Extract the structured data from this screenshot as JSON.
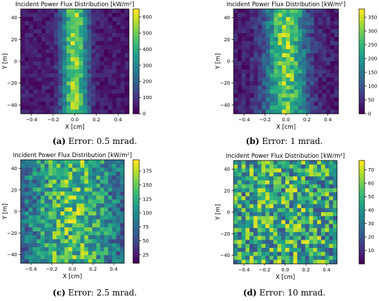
{
  "chart_data": [
    {
      "type": "heatmap",
      "title": "Incident Power Flux Distribution [kW/m²]",
      "xlabel": "X [cm]",
      "ylabel": "Y [m]",
      "x_ticks": [
        "−0.4",
        "−0.2",
        "0.0",
        "0.2",
        "0.4"
      ],
      "y_ticks": [
        "−40",
        "−20",
        "0",
        "20",
        "40"
      ],
      "xlim": [
        -0.5,
        0.5
      ],
      "ylim": [
        -48,
        48
      ],
      "colorbar": {
        "min": 0,
        "max": 650,
        "ticks": [
          "0",
          "100",
          "200",
          "300",
          "400",
          "500",
          "600"
        ]
      },
      "beam_width_cm": 0.08,
      "noise": 0.35,
      "caption_label": "(a)",
      "caption_text": "Error: 0.5 mrad."
    },
    {
      "type": "heatmap",
      "title": "Incident Power Flux Distribution [kW/m²]",
      "xlabel": "X [cm]",
      "ylabel": "Y [m]",
      "x_ticks": [
        "−0.4",
        "−0.2",
        "0.0",
        "0.2",
        "0.4"
      ],
      "y_ticks": [
        "−40",
        "−20",
        "0",
        "20",
        "40"
      ],
      "xlim": [
        -0.5,
        0.5
      ],
      "ylim": [
        -48,
        48
      ],
      "colorbar": {
        "min": 0,
        "max": 380,
        "ticks": [
          "0",
          "50",
          "100",
          "150",
          "200",
          "250",
          "300",
          "350"
        ]
      },
      "beam_width_cm": 0.13,
      "noise": 0.45,
      "caption_label": "(b)",
      "caption_text": "Error: 1 mrad."
    },
    {
      "type": "heatmap",
      "title": "Incident Power Flux Distribution [kW/m²]",
      "xlabel": "X [cm]",
      "ylabel": "Y [m]",
      "x_ticks": [
        "−0.4",
        "−0.2",
        "0.0",
        "0.2",
        "0.4"
      ],
      "y_ticks": [
        "−40",
        "−20",
        "0",
        "20",
        "40"
      ],
      "xlim": [
        -0.5,
        0.5
      ],
      "ylim": [
        -48,
        48
      ],
      "colorbar": {
        "min": 10,
        "max": 195,
        "ticks": [
          "25",
          "50",
          "75",
          "100",
          "125",
          "150",
          "175"
        ]
      },
      "beam_width_cm": 0.35,
      "noise": 0.6,
      "caption_label": "(c)",
      "caption_text": "Error: 2.5 mrad."
    },
    {
      "type": "heatmap",
      "title": "Incident Power Flux Distribution [kW/m²]",
      "xlabel": "X [cm]",
      "ylabel": "Y [m]",
      "x_ticks": [
        "−0.4",
        "−0.2",
        "0.0",
        "0.2",
        "0.4"
      ],
      "y_ticks": [
        "−40",
        "−20",
        "0",
        "20",
        "40"
      ],
      "xlim": [
        -0.5,
        0.5
      ],
      "ylim": [
        -48,
        48
      ],
      "colorbar": {
        "min": 0,
        "max": 77,
        "ticks": [
          "10",
          "20",
          "30",
          "40",
          "50",
          "60",
          "70"
        ]
      },
      "beam_width_cm": 0.9,
      "noise": 0.75,
      "caption_label": "(d)",
      "caption_text": "Error: 10 mrad."
    }
  ]
}
